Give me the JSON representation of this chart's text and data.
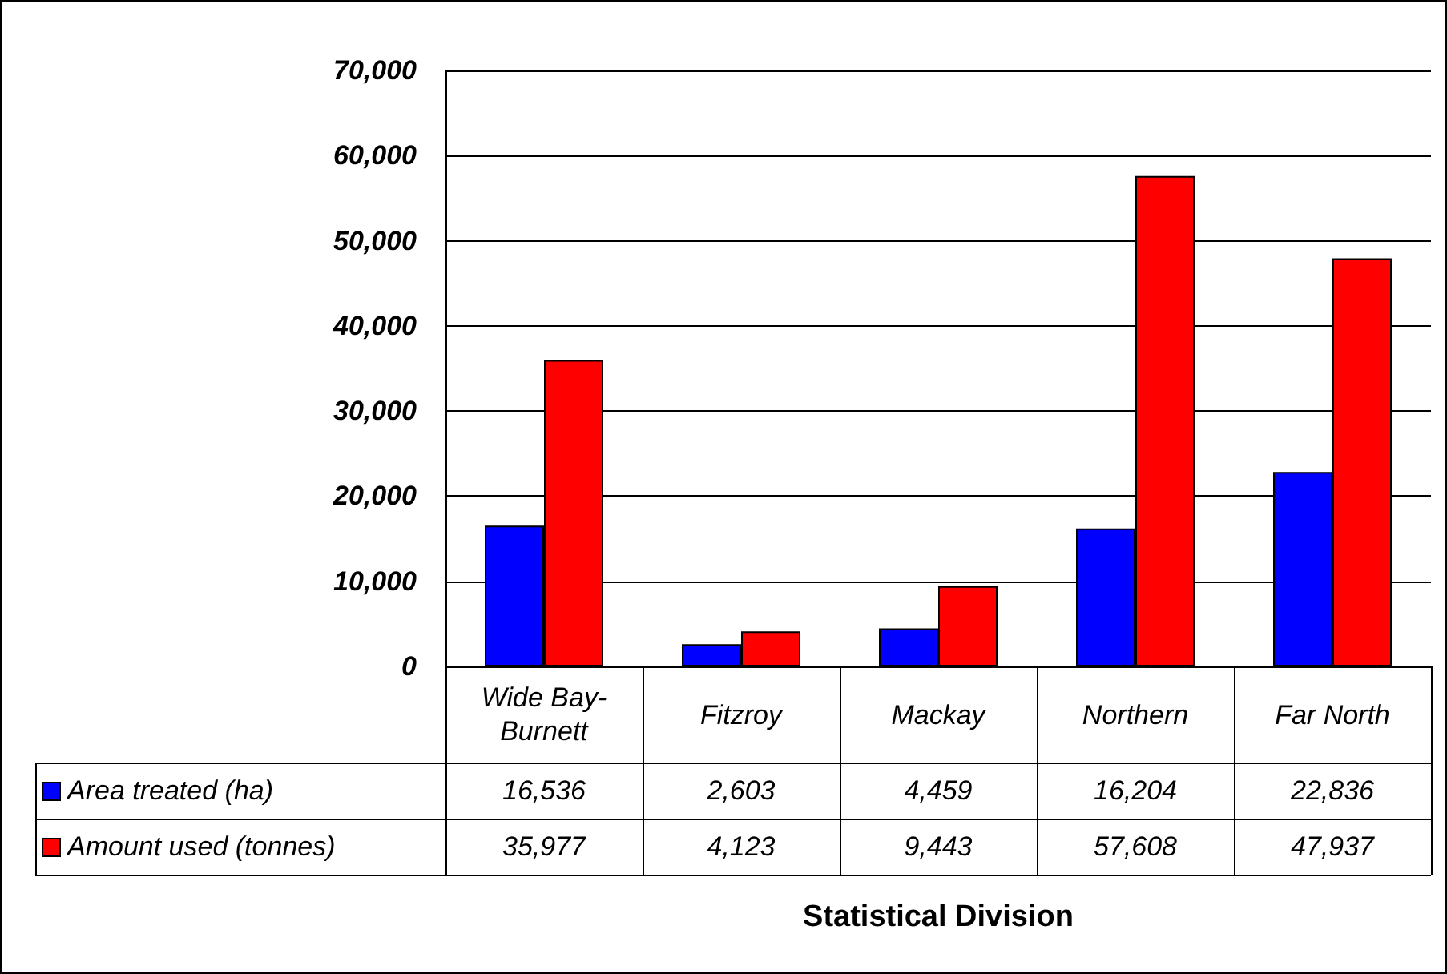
{
  "chart_data": {
    "type": "bar",
    "annotations": [
      "Statistical Division"
    ],
    "categories": [
      "Wide Bay-Burnett",
      "Fitzroy",
      "Mackay",
      "Northern",
      "Far North"
    ],
    "series": [
      {
        "name": "Area treated (ha)",
        "color": "#0000ff",
        "values": [
          16536,
          2603,
          4459,
          16204,
          22836
        ],
        "value_labels": [
          "16,536",
          "2,603",
          "4,459",
          "16,204",
          "22,836"
        ]
      },
      {
        "name": "Amount used (tonnes)",
        "color": "#ff0000",
        "values": [
          35977,
          4123,
          9443,
          57608,
          47937
        ],
        "value_labels": [
          "35,977",
          "4,123",
          "9,443",
          "57,608",
          "47,937"
        ]
      }
    ],
    "ylim": [
      0,
      70000
    ],
    "yticks": [
      {
        "value": 0,
        "label": "0"
      },
      {
        "value": 10000,
        "label": "10,000"
      },
      {
        "value": 20000,
        "label": "20,000"
      },
      {
        "value": 30000,
        "label": "30,000"
      },
      {
        "value": 40000,
        "label": "40,000"
      },
      {
        "value": 50000,
        "label": "50,000"
      },
      {
        "value": 60000,
        "label": "60,000"
      },
      {
        "value": 70000,
        "label": "70,000"
      }
    ],
    "grid": "y",
    "legend": "bottom left"
  }
}
